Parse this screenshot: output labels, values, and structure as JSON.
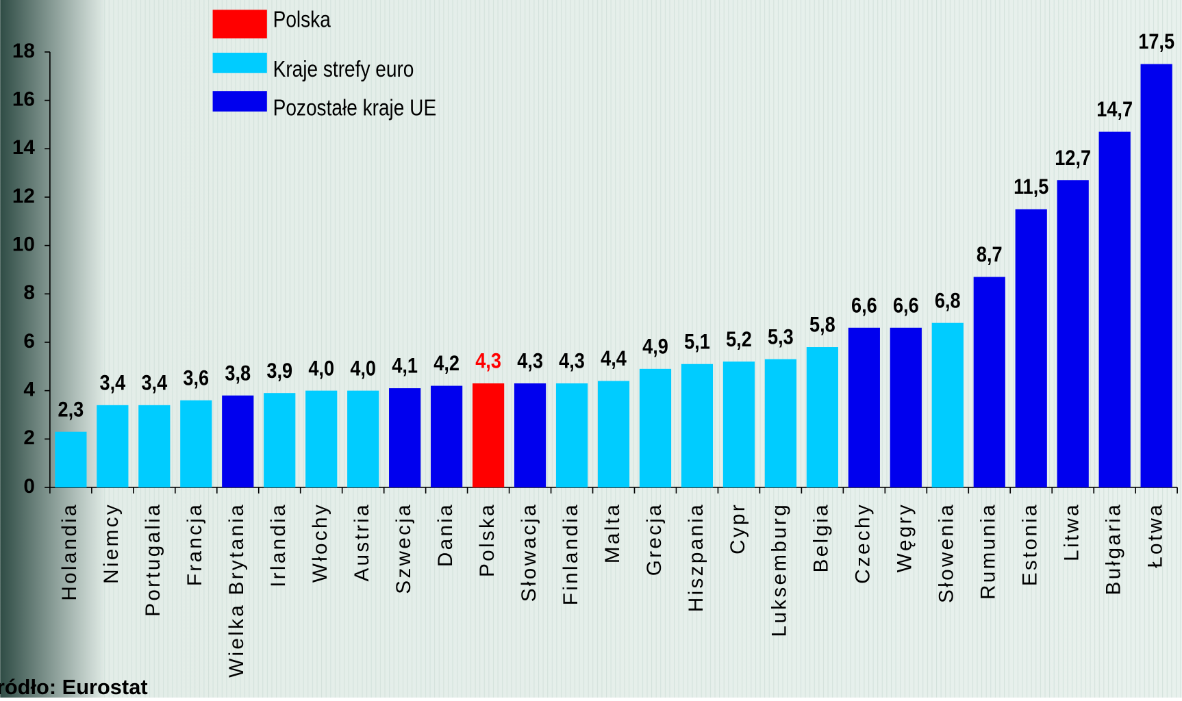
{
  "chart_data": {
    "type": "bar",
    "categories": [
      "Holandia",
      "Niemcy",
      "Portugalia",
      "Francja",
      "Wielka Brytania",
      "Irlandia",
      "Włochy",
      "Austria",
      "Szwecja",
      "Dania",
      "Polska",
      "Słowacja",
      "Finlandia",
      "Malta",
      "Grecja",
      "Hiszpania",
      "Cypr",
      "Luksemburg",
      "Belgia",
      "Czechy",
      "Węgry",
      "Słowenia",
      "Rumunia",
      "Estonia",
      "Litwa",
      "Bułgaria",
      "Łotwa"
    ],
    "values": [
      2.3,
      3.4,
      3.4,
      3.6,
      3.8,
      3.9,
      4.0,
      4.0,
      4.1,
      4.2,
      4.3,
      4.3,
      4.3,
      4.4,
      4.9,
      5.1,
      5.2,
      5.3,
      5.8,
      6.6,
      6.6,
      6.8,
      8.7,
      11.5,
      12.7,
      14.7,
      17.5
    ],
    "value_labels": [
      "2,3",
      "3,4",
      "3,4",
      "3,6",
      "3,8",
      "3,9",
      "4,0",
      "4,0",
      "4,1",
      "4,2",
      "4,3",
      "4,3",
      "4,3",
      "4,4",
      "4,9",
      "5,1",
      "5,2",
      "5,3",
      "5,8",
      "6,6",
      "6,6",
      "6,8",
      "8,7",
      "11,5",
      "12,7",
      "14,7",
      "17,5"
    ],
    "colors": [
      "#00ccff",
      "#00ccff",
      "#00ccff",
      "#00ccff",
      "#0000ee",
      "#00ccff",
      "#00ccff",
      "#00ccff",
      "#0000ee",
      "#0000ee",
      "#ff0000",
      "#0000ee",
      "#00ccff",
      "#00ccff",
      "#00ccff",
      "#00ccff",
      "#00ccff",
      "#00ccff",
      "#00ccff",
      "#0000ee",
      "#0000ee",
      "#00ccff",
      "#0000ee",
      "#0000ee",
      "#0000ee",
      "#0000ee",
      "#0000ee"
    ],
    "legend": [
      {
        "name": "Polska",
        "color": "#ff0000"
      },
      {
        "name": "Kraje strefy euro",
        "color": "#00ccff"
      },
      {
        "name": "Pozostałe kraje UE",
        "color": "#0000ee"
      }
    ],
    "ylim": [
      0,
      18
    ],
    "yticks": [
      0,
      2,
      4,
      6,
      8,
      10,
      12,
      14,
      16,
      18
    ],
    "source": "Źródło: Eurostat"
  }
}
